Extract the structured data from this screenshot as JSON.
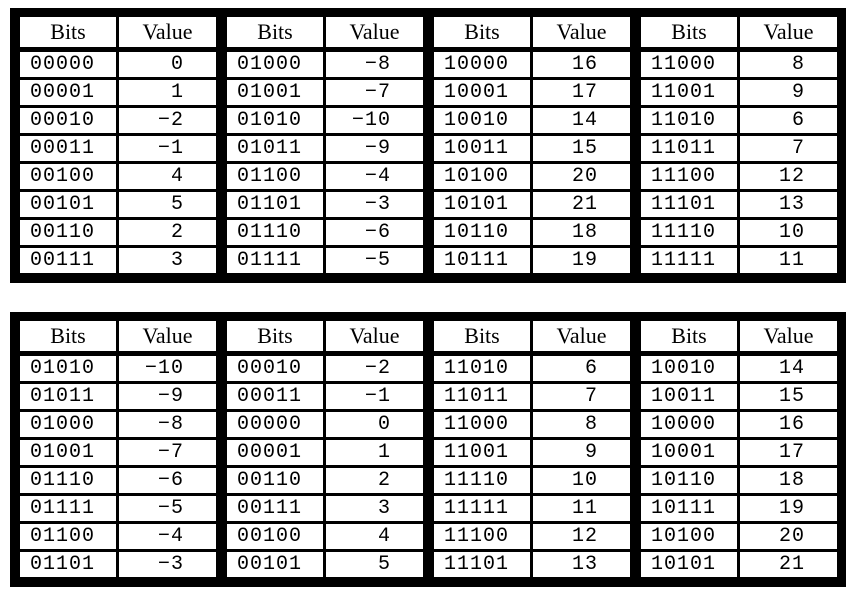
{
  "headers": {
    "bits": "Bits",
    "value": "Value"
  },
  "tables": [
    {
      "groups": [
        {
          "rows": [
            [
              "00000",
              "0"
            ],
            [
              "00001",
              "1"
            ],
            [
              "00010",
              "−2"
            ],
            [
              "00011",
              "−1"
            ],
            [
              "00100",
              "4"
            ],
            [
              "00101",
              "5"
            ],
            [
              "00110",
              "2"
            ],
            [
              "00111",
              "3"
            ]
          ]
        },
        {
          "rows": [
            [
              "01000",
              "−8"
            ],
            [
              "01001",
              "−7"
            ],
            [
              "01010",
              "−10"
            ],
            [
              "01011",
              "−9"
            ],
            [
              "01100",
              "−4"
            ],
            [
              "01101",
              "−3"
            ],
            [
              "01110",
              "−6"
            ],
            [
              "01111",
              "−5"
            ]
          ]
        },
        {
          "rows": [
            [
              "10000",
              "16"
            ],
            [
              "10001",
              "17"
            ],
            [
              "10010",
              "14"
            ],
            [
              "10011",
              "15"
            ],
            [
              "10100",
              "20"
            ],
            [
              "10101",
              "21"
            ],
            [
              "10110",
              "18"
            ],
            [
              "10111",
              "19"
            ]
          ]
        },
        {
          "rows": [
            [
              "11000",
              "8"
            ],
            [
              "11001",
              "9"
            ],
            [
              "11010",
              "6"
            ],
            [
              "11011",
              "7"
            ],
            [
              "11100",
              "12"
            ],
            [
              "11101",
              "13"
            ],
            [
              "11110",
              "10"
            ],
            [
              "11111",
              "11"
            ]
          ]
        }
      ]
    },
    {
      "groups": [
        {
          "rows": [
            [
              "01010",
              "−10"
            ],
            [
              "01011",
              "−9"
            ],
            [
              "01000",
              "−8"
            ],
            [
              "01001",
              "−7"
            ],
            [
              "01110",
              "−6"
            ],
            [
              "01111",
              "−5"
            ],
            [
              "01100",
              "−4"
            ],
            [
              "01101",
              "−3"
            ]
          ]
        },
        {
          "rows": [
            [
              "00010",
              "−2"
            ],
            [
              "00011",
              "−1"
            ],
            [
              "00000",
              "0"
            ],
            [
              "00001",
              "1"
            ],
            [
              "00110",
              "2"
            ],
            [
              "00111",
              "3"
            ],
            [
              "00100",
              "4"
            ],
            [
              "00101",
              "5"
            ]
          ]
        },
        {
          "rows": [
            [
              "11010",
              "6"
            ],
            [
              "11011",
              "7"
            ],
            [
              "11000",
              "8"
            ],
            [
              "11001",
              "9"
            ],
            [
              "11110",
              "10"
            ],
            [
              "11111",
              "11"
            ],
            [
              "11100",
              "12"
            ],
            [
              "11101",
              "13"
            ]
          ]
        },
        {
          "rows": [
            [
              "10010",
              "14"
            ],
            [
              "10011",
              "15"
            ],
            [
              "10000",
              "16"
            ],
            [
              "10001",
              "17"
            ],
            [
              "10110",
              "18"
            ],
            [
              "10111",
              "19"
            ],
            [
              "10100",
              "20"
            ],
            [
              "10101",
              "21"
            ]
          ]
        }
      ]
    }
  ]
}
